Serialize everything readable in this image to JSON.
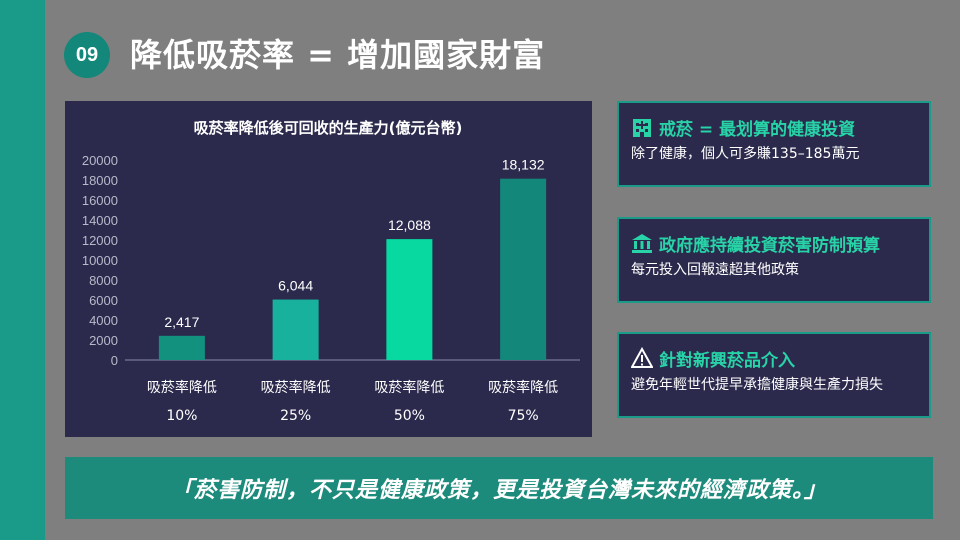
{
  "slide": {
    "number": "09",
    "title": "降低吸菸率 = 增加國家財富"
  },
  "chart_data": {
    "type": "bar",
    "title": "吸菸率降低後可回收的生產力(億元台幣)",
    "categories": [
      "吸菸率降低 10%",
      "吸菸率降低 25%",
      "吸菸率降低 50%",
      "吸菸率降低 75%"
    ],
    "category_lines": [
      [
        "吸菸率降低",
        "10%"
      ],
      [
        "吸菸率降低",
        "25%"
      ],
      [
        "吸菸率降低",
        "50%"
      ],
      [
        "吸菸率降低",
        "75%"
      ]
    ],
    "values": [
      2417,
      6044,
      12088,
      18132
    ],
    "value_labels": [
      "2,417",
      "6,044",
      "12,088",
      "18,132"
    ],
    "bar_colors": [
      "#13917f",
      "#17b19e",
      "#07d9a0",
      "#13877a"
    ],
    "ylim": [
      0,
      20000
    ],
    "yticks": [
      0,
      2000,
      4000,
      6000,
      8000,
      10000,
      12000,
      14000,
      16000,
      18000,
      20000
    ],
    "grid": false,
    "legend": "none"
  },
  "cards": [
    {
      "icon": "hospital-icon",
      "title": "戒菸 = 最划算的健康投資",
      "desc": "除了健康，個人可多賺135–185萬元"
    },
    {
      "icon": "government-building-icon",
      "title": "政府應持續投資菸害防制預算",
      "desc": "每元投入回報遠超其他政策"
    },
    {
      "icon": "warning-icon",
      "title": "針對新興菸品介入",
      "desc": "避免年輕世代提早承擔健康與生產力損失"
    }
  ],
  "quote": "「菸害防制，不只是健康政策，更是投資台灣未來的經濟政策。」",
  "colors": {
    "background": "#7f7f7f",
    "accent": "#1a9a88",
    "panel": "#2b2a4d",
    "highlight_text": "#27d3a7"
  }
}
